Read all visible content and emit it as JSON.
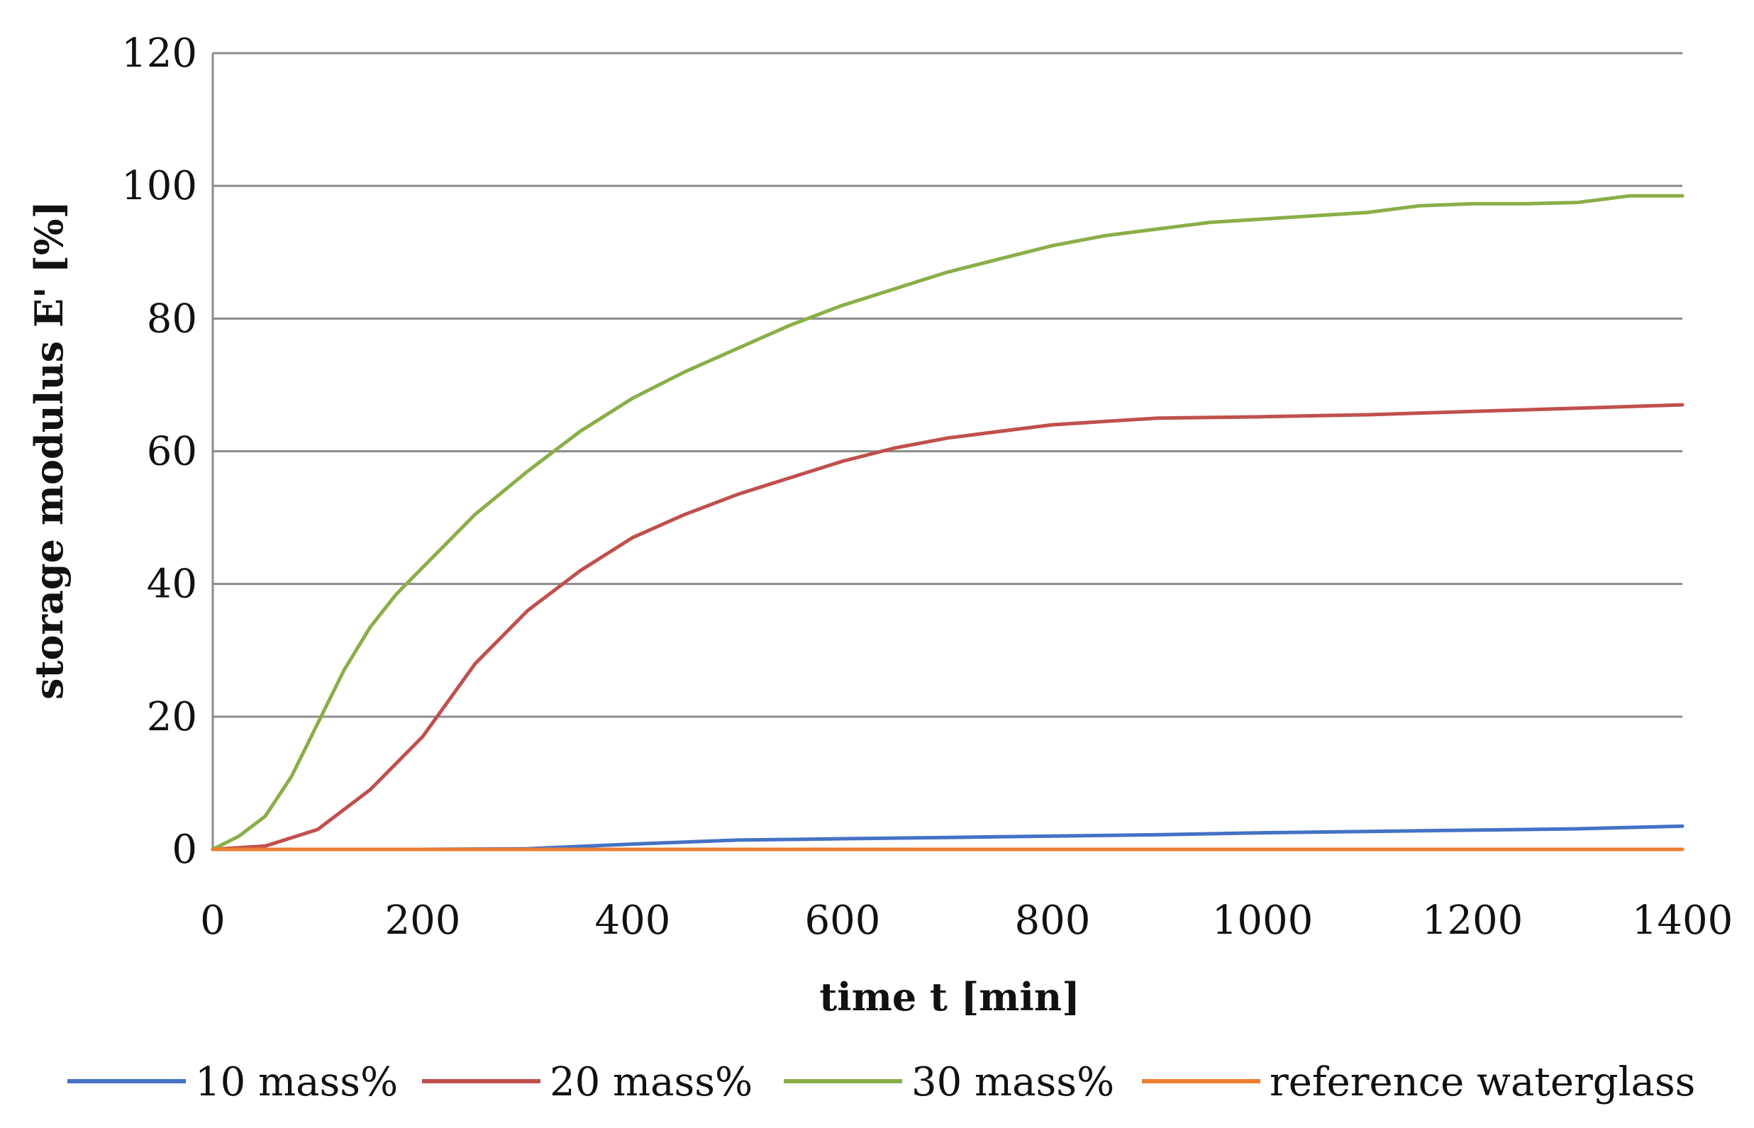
{
  "chart_data": {
    "type": "line",
    "title": "",
    "xlabel": "time t [min]",
    "ylabel": "storage modulus E' [%]",
    "xlim": [
      0,
      1400
    ],
    "ylim": [
      0,
      120
    ],
    "xticks": [
      0,
      200,
      400,
      600,
      800,
      1000,
      1200,
      1400
    ],
    "yticks": [
      0,
      20,
      40,
      60,
      80,
      100,
      120
    ],
    "grid": "horizontal",
    "legend_position": "bottom",
    "series": [
      {
        "name": "10 mass%",
        "color": "#4472C4",
        "x": [
          0,
          200,
          300,
          400,
          500,
          600,
          700,
          800,
          900,
          1000,
          1100,
          1200,
          1300,
          1400
        ],
        "y": [
          0,
          0,
          0.1,
          0.8,
          1.4,
          1.6,
          1.8,
          2.0,
          2.2,
          2.5,
          2.7,
          2.9,
          3.1,
          3.5
        ]
      },
      {
        "name": "20 mass%",
        "color": "#C0504D",
        "x": [
          0,
          50,
          100,
          150,
          200,
          250,
          300,
          350,
          400,
          450,
          500,
          550,
          600,
          650,
          700,
          750,
          800,
          850,
          900,
          1000,
          1100,
          1200,
          1300,
          1400
        ],
        "y": [
          0,
          0.5,
          3,
          9,
          17,
          28,
          36,
          42,
          47,
          50.5,
          53.5,
          56,
          58.5,
          60.5,
          62,
          63,
          64,
          64.5,
          65,
          65.2,
          65.5,
          66,
          66.5,
          67
        ]
      },
      {
        "name": "30 mass%",
        "color": "#8BAE48",
        "x": [
          0,
          25,
          50,
          75,
          100,
          125,
          150,
          175,
          200,
          250,
          300,
          350,
          400,
          450,
          500,
          550,
          600,
          650,
          700,
          750,
          800,
          850,
          900,
          950,
          1000,
          1050,
          1100,
          1150,
          1200,
          1250,
          1300,
          1350,
          1400
        ],
        "y": [
          0,
          2,
          5,
          11,
          19,
          27,
          33.5,
          38.5,
          42.5,
          50.5,
          57,
          63,
          68,
          72,
          75.5,
          79,
          82,
          84.5,
          87,
          89,
          91,
          92.5,
          93.5,
          94.5,
          95,
          95.5,
          96,
          97,
          97.3,
          97.3,
          97.5,
          98.5,
          98.5
        ]
      },
      {
        "name": "reference waterglass",
        "color": "#ED7D31",
        "x": [
          0,
          1400
        ],
        "y": [
          0,
          0
        ]
      }
    ]
  }
}
